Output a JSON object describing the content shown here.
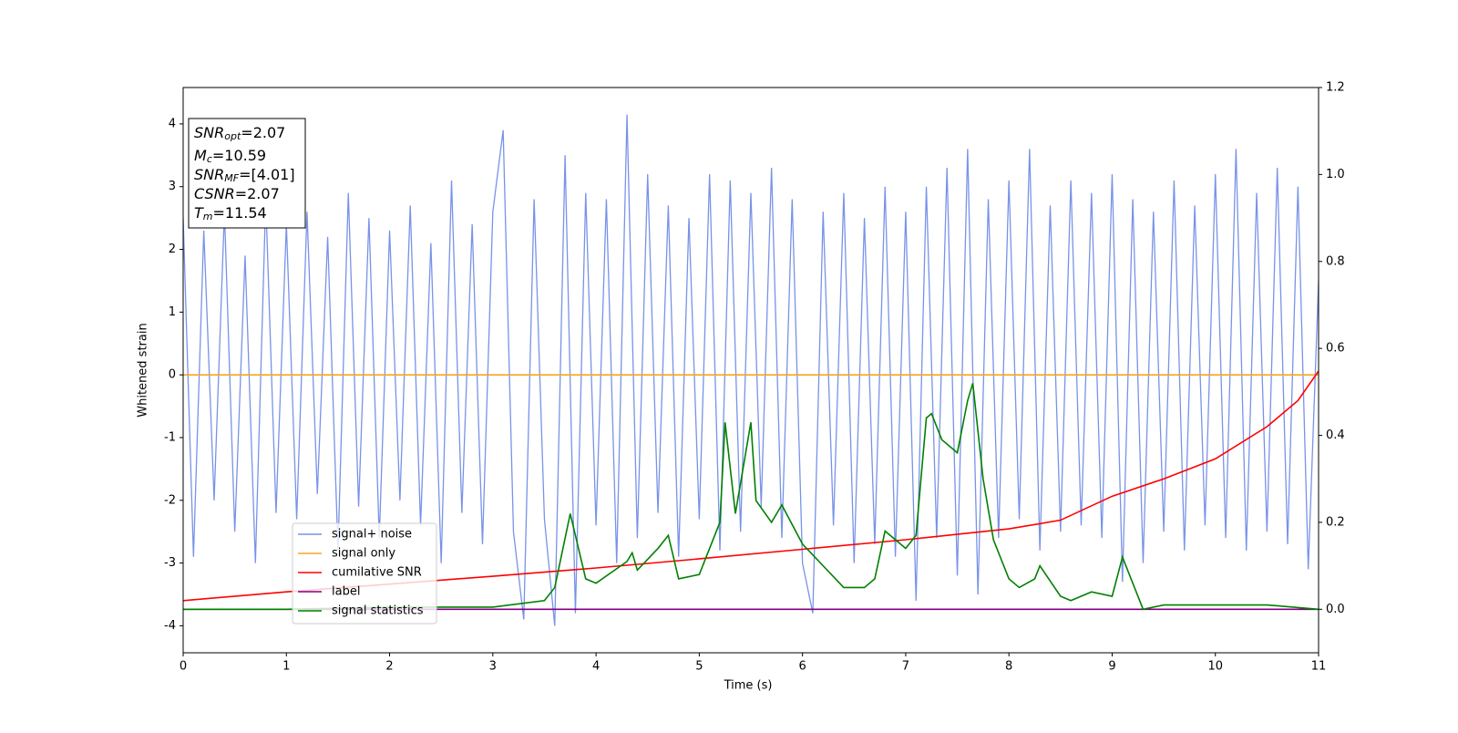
{
  "chart_data": {
    "type": "line",
    "xlabel": "Time (s)",
    "ylabel": "Whitened strain",
    "xlim": [
      0,
      11
    ],
    "xticks": [
      0,
      1,
      2,
      3,
      4,
      5,
      6,
      7,
      8,
      9,
      10,
      11
    ],
    "ylim": [
      -4.43,
      4.58
    ],
    "yticks": [
      -4,
      -3,
      -2,
      -1,
      0,
      1,
      2,
      3,
      4
    ],
    "y2lim": [
      -0.1,
      1.2
    ],
    "y2ticks": [
      {
        "value": 0,
        "label": "0.0"
      },
      0.2,
      0.4,
      0.6,
      0.8,
      {
        "value": 1,
        "label": "1.0"
      },
      1.2
    ],
    "legend_loc": "lower left",
    "annotations": [
      {
        "base": "SNR",
        "sub": "opt",
        "text": "=2.07"
      },
      {
        "base": "M",
        "sub": "c",
        "text": "=10.59"
      },
      {
        "base": "SNR",
        "sub": "MF",
        "text": "=[4.01]"
      },
      {
        "base": "CSNR",
        "text": "=2.07"
      },
      {
        "base": "T",
        "sub": "m",
        "text": "=11.54"
      }
    ],
    "series": [
      {
        "name": "signal+ noise",
        "color": "#7893e8",
        "axis": "y",
        "x": [
          0,
          0.1,
          0.2,
          0.3,
          0.4,
          0.5,
          0.6,
          0.7,
          0.8,
          0.9,
          1,
          1.1,
          1.2,
          1.3,
          1.4,
          1.5,
          1.6,
          1.7,
          1.8,
          1.9,
          2,
          2.1,
          2.2,
          2.3,
          2.4,
          2.5,
          2.6,
          2.7,
          2.8,
          2.9,
          3,
          3.1,
          3.2,
          3.3,
          3.4,
          3.5,
          3.6,
          3.7,
          3.8,
          3.9,
          4,
          4.1,
          4.2,
          4.3,
          4.4,
          4.5,
          4.6,
          4.7,
          4.8,
          4.9,
          5,
          5.1,
          5.2,
          5.3,
          5.4,
          5.5,
          5.6,
          5.7,
          5.8,
          5.9,
          6,
          6.1,
          6.2,
          6.3,
          6.4,
          6.5,
          6.6,
          6.7,
          6.8,
          6.9,
          7,
          7.1,
          7.2,
          7.3,
          7.4,
          7.5,
          7.6,
          7.7,
          7.8,
          7.9,
          8,
          8.1,
          8.2,
          8.3,
          8.4,
          8.5,
          8.6,
          8.7,
          8.8,
          8.9,
          9,
          9.1,
          9.2,
          9.3,
          9.4,
          9.5,
          9.6,
          9.7,
          9.8,
          9.9,
          10,
          10.1,
          10.2,
          10.3,
          10.4,
          10.5,
          10.6,
          10.7,
          10.8,
          10.9,
          11
        ],
        "values": [
          2.5,
          -2.9,
          2.3,
          -2.0,
          2.6,
          -2.5,
          1.9,
          -3.0,
          2.8,
          -2.2,
          2.4,
          -2.3,
          2.6,
          -1.9,
          2.2,
          -2.8,
          2.9,
          -2.1,
          2.5,
          -2.6,
          2.3,
          -2.0,
          2.7,
          -2.4,
          2.1,
          -3.0,
          3.1,
          -2.2,
          2.4,
          -2.7,
          2.6,
          3.9,
          -2.5,
          -3.9,
          2.8,
          -2.3,
          -4.0,
          3.5,
          -3.8,
          2.9,
          -2.4,
          2.8,
          -3.0,
          4.15,
          -2.6,
          3.2,
          -2.2,
          2.7,
          -2.9,
          2.5,
          -2.3,
          3.2,
          -2.8,
          3.1,
          -2.5,
          2.9,
          -2.1,
          3.3,
          -2.6,
          2.8,
          -3.0,
          -3.8,
          2.6,
          -2.4,
          2.9,
          -3.0,
          2.5,
          -2.7,
          3.0,
          -2.9,
          2.6,
          -3.6,
          3.0,
          -2.6,
          3.3,
          -3.2,
          3.6,
          -3.5,
          2.8,
          -2.6,
          3.1,
          -2.3,
          3.6,
          -2.8,
          2.7,
          -2.5,
          3.1,
          -2.4,
          2.9,
          -2.6,
          3.2,
          -3.3,
          2.8,
          -3.0,
          2.6,
          -2.5,
          3.1,
          -2.8,
          2.7,
          -2.4,
          3.2,
          -2.6,
          3.6,
          -2.8,
          2.9,
          -2.5,
          3.3,
          -2.7,
          3.0,
          -3.1,
          1.5
        ]
      },
      {
        "name": "signal only",
        "color": "#f5a623",
        "axis": "y",
        "x": [
          0,
          11
        ],
        "values": [
          0,
          0
        ]
      },
      {
        "name": "cumilative SNR",
        "color": "#ff0000",
        "axis": "y2",
        "x": [
          0,
          1,
          2,
          3,
          4,
          5,
          6,
          7,
          8,
          8.5,
          9,
          9.5,
          10,
          10.5,
          10.8,
          11
        ],
        "values": [
          0.02,
          0.04,
          0.058,
          0.076,
          0.095,
          0.116,
          0.138,
          0.16,
          0.185,
          0.205,
          0.26,
          0.3,
          0.346,
          0.42,
          0.48,
          0.548
        ]
      },
      {
        "name": "label",
        "color": "#800080",
        "axis": "y2",
        "x": [
          0,
          11
        ],
        "values": [
          0,
          0
        ]
      },
      {
        "name": "signal statistics",
        "color": "#008000",
        "axis": "y2",
        "x": [
          0,
          1,
          2,
          3,
          3.5,
          3.6,
          3.75,
          3.9,
          4,
          4.3,
          4.35,
          4.4,
          4.6,
          4.7,
          4.8,
          5,
          5.2,
          5.25,
          5.35,
          5.5,
          5.55,
          5.7,
          5.8,
          6,
          6.2,
          6.4,
          6.6,
          6.7,
          6.8,
          6.9,
          7,
          7.1,
          7.2,
          7.25,
          7.35,
          7.5,
          7.6,
          7.65,
          7.75,
          7.85,
          8,
          8.1,
          8.25,
          8.3,
          8.5,
          8.6,
          8.8,
          9,
          9.1,
          9.3,
          9.5,
          10,
          10.5,
          11
        ],
        "values": [
          0.0,
          0.0,
          0.005,
          0.005,
          0.02,
          0.05,
          0.22,
          0.07,
          0.06,
          0.11,
          0.13,
          0.09,
          0.14,
          0.17,
          0.07,
          0.08,
          0.2,
          0.43,
          0.22,
          0.43,
          0.25,
          0.2,
          0.24,
          0.15,
          0.1,
          0.05,
          0.05,
          0.07,
          0.18,
          0.16,
          0.14,
          0.17,
          0.44,
          0.45,
          0.39,
          0.36,
          0.48,
          0.52,
          0.3,
          0.16,
          0.07,
          0.05,
          0.07,
          0.1,
          0.03,
          0.02,
          0.04,
          0.03,
          0.12,
          0.0,
          0.01,
          0.01,
          0.01,
          0.0
        ]
      }
    ]
  }
}
